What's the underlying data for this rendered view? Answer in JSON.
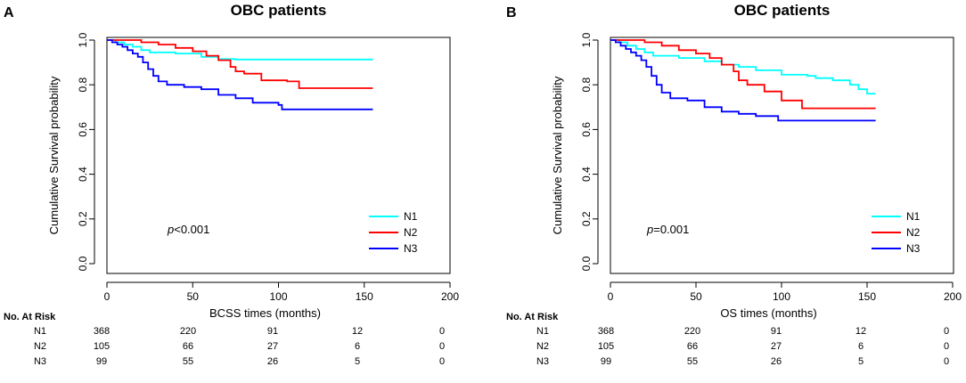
{
  "chart_data": [
    {
      "panel_label": "A",
      "type": "line",
      "title": "OBC patients",
      "xlabel": "BCSS times (months)",
      "ylabel": "Cumulative Survival probability",
      "xlim": [
        0,
        200
      ],
      "ylim": [
        0,
        1
      ],
      "x_ticks": [
        "0",
        "50",
        "100",
        "150",
        "200"
      ],
      "y_ticks": [
        "0.0",
        "0.2",
        "0.4",
        "0.6",
        "0.8",
        "1.0"
      ],
      "annotation": {
        "italic": "p",
        "rest": "<0.001"
      },
      "legend": {
        "placement": "bottom-right"
      },
      "series": [
        {
          "name": "N1",
          "color": "#00FFFF",
          "points": [
            [
              0,
              1.0
            ],
            [
              5,
              0.99
            ],
            [
              10,
              0.98
            ],
            [
              15,
              0.97
            ],
            [
              20,
              0.955
            ],
            [
              25,
              0.945
            ],
            [
              40,
              0.94
            ],
            [
              55,
              0.925
            ],
            [
              65,
              0.915
            ],
            [
              75,
              0.913
            ],
            [
              155,
              0.913
            ]
          ]
        },
        {
          "name": "N2",
          "color": "#FF0000",
          "points": [
            [
              0,
              1.0
            ],
            [
              15,
              1.0
            ],
            [
              20,
              0.99
            ],
            [
              30,
              0.98
            ],
            [
              40,
              0.965
            ],
            [
              50,
              0.95
            ],
            [
              58,
              0.93
            ],
            [
              65,
              0.91
            ],
            [
              72,
              0.88
            ],
            [
              75,
              0.86
            ],
            [
              80,
              0.85
            ],
            [
              90,
              0.82
            ],
            [
              105,
              0.815
            ],
            [
              112,
              0.785
            ],
            [
              155,
              0.785
            ]
          ]
        },
        {
          "name": "N3",
          "color": "#0000FF",
          "points": [
            [
              0,
              1.0
            ],
            [
              3,
              0.99
            ],
            [
              6,
              0.98
            ],
            [
              9,
              0.97
            ],
            [
              12,
              0.955
            ],
            [
              15,
              0.94
            ],
            [
              18,
              0.925
            ],
            [
              21,
              0.9
            ],
            [
              24,
              0.87
            ],
            [
              27,
              0.84
            ],
            [
              30,
              0.815
            ],
            [
              35,
              0.8
            ],
            [
              45,
              0.79
            ],
            [
              55,
              0.78
            ],
            [
              65,
              0.755
            ],
            [
              75,
              0.74
            ],
            [
              85,
              0.72
            ],
            [
              100,
              0.71
            ],
            [
              102,
              0.69
            ],
            [
              155,
              0.69
            ]
          ]
        }
      ],
      "risk_table": {
        "header": "No. At Risk",
        "rows": [
          {
            "label": "N1",
            "values": [
              "368",
              "220",
              "91",
              "12",
              "0"
            ]
          },
          {
            "label": "N2",
            "values": [
              "105",
              "66",
              "27",
              "6",
              "0"
            ]
          },
          {
            "label": "N3",
            "values": [
              "99",
              "55",
              "26",
              "5",
              "0"
            ]
          }
        ]
      }
    },
    {
      "panel_label": "B",
      "type": "line",
      "title": "OBC patients",
      "xlabel": "OS times (months)",
      "ylabel": "Cumulative Survival probability",
      "xlim": [
        0,
        200
      ],
      "ylim": [
        0,
        1
      ],
      "x_ticks": [
        "0",
        "50",
        "100",
        "150",
        "200"
      ],
      "y_ticks": [
        "0.0",
        "0.2",
        "0.4",
        "0.6",
        "0.8",
        "1.0"
      ],
      "annotation": {
        "italic": "p",
        "rest": "=0.001"
      },
      "legend": {
        "placement": "bottom-right"
      },
      "series": [
        {
          "name": "N1",
          "color": "#00FFFF",
          "points": [
            [
              0,
              1.0
            ],
            [
              5,
              0.99
            ],
            [
              10,
              0.975
            ],
            [
              15,
              0.96
            ],
            [
              20,
              0.945
            ],
            [
              25,
              0.93
            ],
            [
              40,
              0.92
            ],
            [
              55,
              0.905
            ],
            [
              65,
              0.89
            ],
            [
              75,
              0.88
            ],
            [
              85,
              0.865
            ],
            [
              100,
              0.845
            ],
            [
              115,
              0.84
            ],
            [
              120,
              0.83
            ],
            [
              130,
              0.82
            ],
            [
              140,
              0.8
            ],
            [
              145,
              0.78
            ],
            [
              150,
              0.76
            ],
            [
              155,
              0.76
            ]
          ]
        },
        {
          "name": "N2",
          "color": "#FF0000",
          "points": [
            [
              0,
              1.0
            ],
            [
              15,
              1.0
            ],
            [
              20,
              0.99
            ],
            [
              30,
              0.975
            ],
            [
              40,
              0.955
            ],
            [
              50,
              0.94
            ],
            [
              58,
              0.92
            ],
            [
              65,
              0.89
            ],
            [
              72,
              0.86
            ],
            [
              75,
              0.82
            ],
            [
              80,
              0.8
            ],
            [
              90,
              0.77
            ],
            [
              100,
              0.73
            ],
            [
              112,
              0.695
            ],
            [
              155,
              0.695
            ]
          ]
        },
        {
          "name": "N3",
          "color": "#0000FF",
          "points": [
            [
              0,
              1.0
            ],
            [
              3,
              0.99
            ],
            [
              6,
              0.975
            ],
            [
              9,
              0.96
            ],
            [
              12,
              0.945
            ],
            [
              15,
              0.93
            ],
            [
              18,
              0.91
            ],
            [
              21,
              0.88
            ],
            [
              24,
              0.84
            ],
            [
              27,
              0.8
            ],
            [
              30,
              0.765
            ],
            [
              35,
              0.74
            ],
            [
              45,
              0.73
            ],
            [
              55,
              0.7
            ],
            [
              65,
              0.68
            ],
            [
              75,
              0.67
            ],
            [
              85,
              0.66
            ],
            [
              98,
              0.64
            ],
            [
              155,
              0.64
            ]
          ]
        }
      ],
      "risk_table": {
        "header": "No. At Risk",
        "rows": [
          {
            "label": "N1",
            "values": [
              "368",
              "220",
              "91",
              "12",
              "0"
            ]
          },
          {
            "label": "N2",
            "values": [
              "105",
              "66",
              "27",
              "6",
              "0"
            ]
          },
          {
            "label": "N3",
            "values": [
              "99",
              "55",
              "26",
              "5",
              "0"
            ]
          }
        ]
      }
    }
  ]
}
